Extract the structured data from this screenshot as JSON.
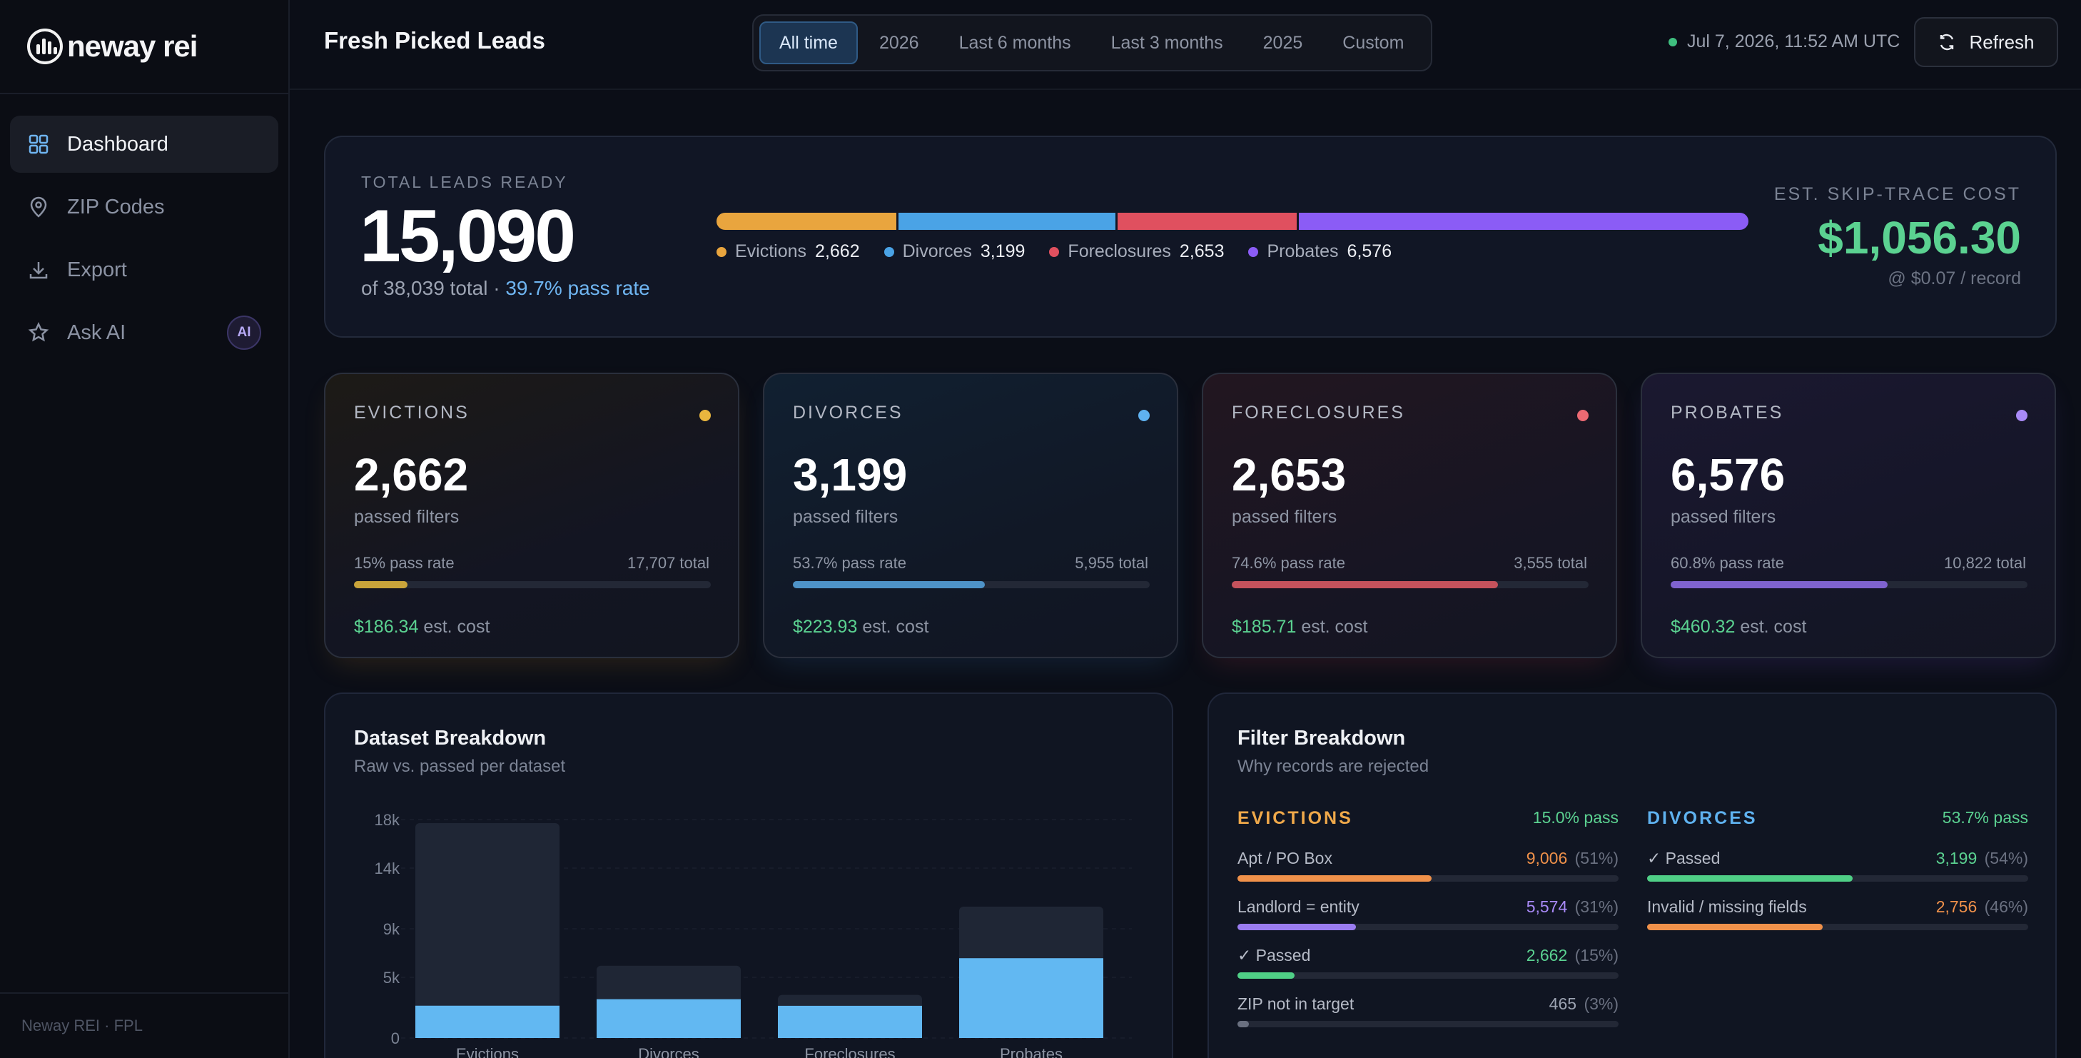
{
  "brand": {
    "name": "neway rei"
  },
  "sidebar": {
    "items": [
      {
        "label": "Dashboard",
        "icon": "grid-icon",
        "active": true
      },
      {
        "label": "ZIP Codes",
        "icon": "map-pin-icon"
      },
      {
        "label": "Export",
        "icon": "download-icon"
      },
      {
        "label": "Ask AI",
        "icon": "star-icon",
        "badge": "AI"
      }
    ],
    "footer": "Neway REI · FPL"
  },
  "header": {
    "title": "Fresh Picked Leads",
    "ranges": [
      "All time",
      "2026",
      "Last 6 months",
      "Last 3 months",
      "2025",
      "Custom"
    ],
    "active_range": "All time",
    "timestamp": "Jul 7, 2026, 11:52 AM UTC",
    "refresh_label": "Refresh"
  },
  "summary": {
    "label": "TOTAL LEADS READY",
    "value": "15,090",
    "sub_prefix": "of 38,039 total · ",
    "pass_rate": "39.7% pass rate",
    "segments": [
      {
        "name": "Evictions",
        "value": "2,662",
        "amount": 2662,
        "color": "#e9a53e"
      },
      {
        "name": "Divorces",
        "value": "3,199",
        "amount": 3199,
        "color": "#4aa3e6"
      },
      {
        "name": "Foreclosures",
        "value": "2,653",
        "amount": 2653,
        "color": "#e0505f"
      },
      {
        "name": "Probates",
        "value": "6,576",
        "amount": 6576,
        "color": "#8b5cf6"
      }
    ],
    "skip_label": "EST. SKIP-TRACE COST",
    "skip_value": "$1,056.30",
    "skip_note": "@ $0.07 / record"
  },
  "datasets": [
    {
      "label": "EVICTIONS",
      "value": "2,662",
      "sub": "passed filters",
      "rate": "15% pass rate",
      "total": "17,707 total",
      "fill": 0.15,
      "cost": "$186.34",
      "cost_suffix": " est. cost",
      "color": "#e9b63e",
      "bar": "#c9a43a",
      "bg": "linear-gradient(160deg,#1d1a16 0%,#131522 60%,#121520 100%)",
      "glow": "rgba(201,140,40,0.18)"
    },
    {
      "label": "DIVORCES",
      "value": "3,199",
      "sub": "passed filters",
      "rate": "53.7% pass rate",
      "total": "5,955 total",
      "fill": 0.537,
      "cost": "$223.93",
      "cost_suffix": " est. cost",
      "color": "#5fb2f0",
      "bar": "#4e93c8",
      "bg": "linear-gradient(160deg,#112031 0%,#111826 60%,#111522 100%)",
      "glow": "rgba(60,140,220,0.16)"
    },
    {
      "label": "FORECLOSURES",
      "value": "2,653",
      "sub": "passed filters",
      "rate": "74.6% pass rate",
      "total": "3,555 total",
      "fill": 0.746,
      "cost": "$185.71",
      "cost_suffix": " est. cost",
      "color": "#ec6a73",
      "bar": "#c5525c",
      "bg": "linear-gradient(160deg,#221620 0%,#171523 60%,#131522 100%)",
      "glow": "rgba(220,70,90,0.16)"
    },
    {
      "label": "PROBATES",
      "value": "6,576",
      "sub": "passed filters",
      "rate": "60.8% pass rate",
      "total": "10,822 total",
      "fill": 0.608,
      "cost": "$460.32",
      "cost_suffix": " est. cost",
      "color": "#a98af8",
      "bar": "#7f63cf",
      "bg": "linear-gradient(160deg,#1b1830 0%,#151628 60%,#131522 100%)",
      "glow": "rgba(130,90,230,0.18)"
    }
  ],
  "dataset_breakdown": {
    "title": "Dataset Breakdown",
    "subtitle": "Raw vs. passed per dataset"
  },
  "chart_data": {
    "type": "bar",
    "categories": [
      "Evictions",
      "Divorces",
      "Foreclosures",
      "Probates"
    ],
    "series": [
      {
        "values": [
          17707,
          5955,
          3555,
          10822
        ],
        "color": "#1f2635"
      },
      {
        "values": [
          2662,
          3199,
          2653,
          6576
        ],
        "color": "#62b8f2"
      }
    ],
    "yticks": [
      "18k",
      "14k",
      "9k",
      "5k",
      "0"
    ],
    "ylim": [
      0,
      18000
    ],
    "grid": true
  },
  "filter_breakdown": {
    "title": "Filter Breakdown",
    "subtitle": "Why records are rejected",
    "columns": [
      {
        "name": "EVICTIONS",
        "pass": "15.0% pass",
        "color": "#f0a94a",
        "rows": [
          {
            "label": "Apt / PO Box",
            "count": "9,006",
            "pct": "(51%)",
            "fill": 0.51,
            "color": "#f0914a",
            "count_color": "#f0914a"
          },
          {
            "label": "Landlord = entity",
            "count": "5,574",
            "pct": "(31%)",
            "fill": 0.31,
            "color": "#9a7cf0",
            "count_color": "#a98af8"
          },
          {
            "label": "✓ Passed",
            "count": "2,662",
            "pct": "(15%)",
            "fill": 0.15,
            "color": "#4fcf86",
            "count_color": "#5bd291"
          },
          {
            "label": "ZIP not in target",
            "count": "465",
            "pct": "(3%)",
            "fill": 0.03,
            "color": "#6a7080",
            "count_color": "#9ca3b2"
          }
        ]
      },
      {
        "name": "DIVORCES",
        "pass": "53.7% pass",
        "color": "#5fb2f0",
        "rows": [
          {
            "label": "✓ Passed",
            "count": "3,199",
            "pct": "(54%)",
            "fill": 0.54,
            "color": "#4fcf86",
            "count_color": "#5bd291"
          },
          {
            "label": "Invalid / missing fields",
            "count": "2,756",
            "pct": "(46%)",
            "fill": 0.46,
            "color": "#f0914a",
            "count_color": "#f0914a"
          }
        ]
      }
    ]
  }
}
